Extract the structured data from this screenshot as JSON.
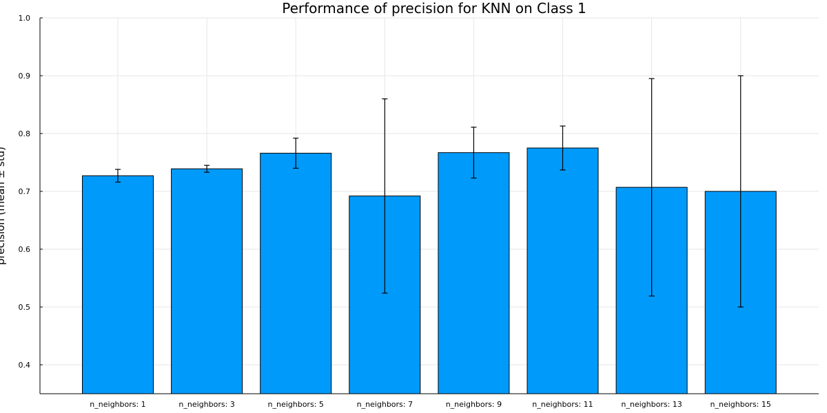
{
  "chart_data": {
    "type": "bar",
    "title": "Performance of precision for KNN on Class 1",
    "xlabel": "",
    "ylabel": "precision (mean ± std)",
    "ylim": [
      0.35,
      1.0
    ],
    "yticks": [
      "0.4",
      "0.5",
      "0.6",
      "0.7",
      "0.8",
      "0.9",
      "1.0"
    ],
    "categories": [
      "n_neighbors: 1",
      "n_neighbors: 3",
      "n_neighbors: 5",
      "n_neighbors: 7",
      "n_neighbors: 9",
      "n_neighbors: 11",
      "n_neighbors: 13",
      "n_neighbors: 15"
    ],
    "values": [
      0.727,
      0.739,
      0.766,
      0.692,
      0.767,
      0.775,
      0.707,
      0.7
    ],
    "errors": [
      0.011,
      0.006,
      0.026,
      0.168,
      0.044,
      0.038,
      0.188,
      0.2
    ],
    "grid": true,
    "legend": "none",
    "bar_color": "#009AFA"
  }
}
